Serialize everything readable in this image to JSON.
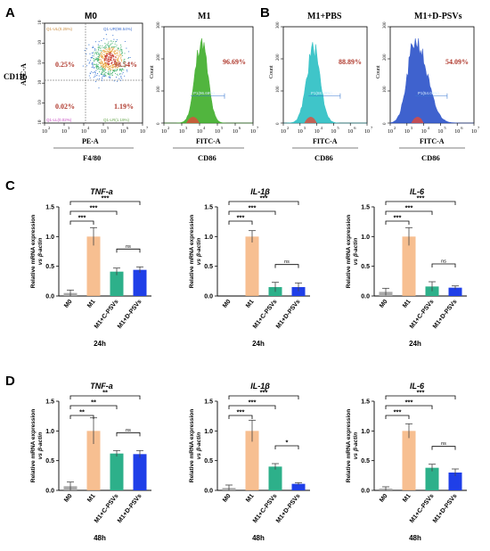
{
  "panel_letters": {
    "A": "A",
    "B": "B",
    "C": "C",
    "D": "D"
  },
  "flow": {
    "m0": {
      "title": "M0",
      "ylabel": "APC-A",
      "ylabel2": "CD11b",
      "xlabel": "PE-A",
      "xlabel2": "F4/80",
      "quad_values": {
        "ul": "0.25%",
        "ur": "98.54%",
        "ll": "0.02%",
        "lr": "1.19%"
      },
      "quad_tags": {
        "ul": "Q1-UL(0.25%)",
        "ur": "Q1-UR(98.54%)",
        "ll": "Q1-LL(0.02%)",
        "lr": "Q1-LR(1.19%)"
      }
    },
    "hists": [
      {
        "title": "M1",
        "value": "96.69%",
        "gate": "P1(96.69%)",
        "xlabel": "FITC-A",
        "xlabel2": "CD86",
        "color": "#3fae2a"
      },
      {
        "title": "M1+PBS",
        "value": "88.89%",
        "gate": "P1(88.89%)",
        "xlabel": "FITC-A",
        "xlabel2": "CD86",
        "color": "#2bbfc4"
      },
      {
        "title": "M1+D-PSVs",
        "value": "54.09%",
        "gate": "P1(54.09%)",
        "xlabel": "FITC-A",
        "xlabel2": "CD86",
        "color": "#2b52c9"
      }
    ],
    "count_label": "Count",
    "log_ticks": [
      "10",
      "10",
      "10",
      "10",
      "10",
      "10"
    ],
    "log_exps": [
      "2",
      "3",
      "4",
      "5",
      "6",
      "7"
    ],
    "hist_y_ticks": [
      "0",
      "100",
      "200",
      "300"
    ]
  },
  "chart_data": [
    {
      "type": "bar",
      "panel": "C",
      "title": "TNF-a",
      "xlabel": "24h",
      "ylabel": [
        "Relative mRNA expression",
        "vs β-actin"
      ],
      "categories": [
        "M0",
        "M1",
        "M1+C-PSVs",
        "M1+D-PSVs"
      ],
      "values": [
        0.05,
        1.0,
        0.41,
        0.44
      ],
      "errors": [
        0.05,
        0.15,
        0.06,
        0.05
      ],
      "ylim": [
        0,
        1.5
      ],
      "yticks": [
        "0.0",
        "0.5",
        "1.0",
        "1.5"
      ],
      "sig": [
        {
          "from": 0,
          "to": 1,
          "label": "***"
        },
        {
          "from": 0,
          "to": 2,
          "label": "***"
        },
        {
          "from": 0,
          "to": 3,
          "label": "***"
        },
        {
          "from": 2,
          "to": 3,
          "label": "ns"
        }
      ]
    },
    {
      "type": "bar",
      "panel": "C",
      "title": "IL-1β",
      "xlabel": "24h",
      "ylabel": [
        "Relative mRNA expression",
        "vs β-actin"
      ],
      "categories": [
        "M0",
        "M1",
        "M1+C-PSVs",
        "M1+D-PSVs"
      ],
      "values": [
        0.0,
        1.0,
        0.15,
        0.15
      ],
      "errors": [
        0.0,
        0.1,
        0.08,
        0.07
      ],
      "ylim": [
        0,
        1.5
      ],
      "yticks": [
        "0.0",
        "0.5",
        "1.0",
        "1.5"
      ],
      "sig": [
        {
          "from": 0,
          "to": 1,
          "label": "***"
        },
        {
          "from": 0,
          "to": 2,
          "label": "***"
        },
        {
          "from": 0,
          "to": 3,
          "label": "***"
        },
        {
          "from": 2,
          "to": 3,
          "label": "ns"
        }
      ]
    },
    {
      "type": "bar",
      "panel": "C",
      "title": "IL-6",
      "xlabel": "24h",
      "ylabel": [
        "Relative mRNA expression",
        "vs β-actin"
      ],
      "categories": [
        "M0",
        "M1",
        "M1+C-PSVs",
        "M1+D-PSVs"
      ],
      "values": [
        0.07,
        1.0,
        0.16,
        0.14
      ],
      "errors": [
        0.06,
        0.15,
        0.08,
        0.03
      ],
      "ylim": [
        0,
        1.5
      ],
      "yticks": [
        "0.0",
        "0.5",
        "1.0",
        "1.5"
      ],
      "sig": [
        {
          "from": 0,
          "to": 1,
          "label": "***"
        },
        {
          "from": 0,
          "to": 2,
          "label": "***"
        },
        {
          "from": 0,
          "to": 3,
          "label": "***"
        },
        {
          "from": 2,
          "to": 3,
          "label": "ns"
        }
      ]
    },
    {
      "type": "bar",
      "panel": "D",
      "title": "TNF-a",
      "xlabel": "48h",
      "ylabel": [
        "Relative mRNA expression",
        "vs β-actin"
      ],
      "categories": [
        "M0",
        "M1",
        "M1+C-PSVs",
        "M1+D-PSVs"
      ],
      "values": [
        0.07,
        1.0,
        0.62,
        0.61
      ],
      "errors": [
        0.07,
        0.22,
        0.05,
        0.06
      ],
      "ylim": [
        0,
        1.5
      ],
      "yticks": [
        "0.0",
        "0.5",
        "1.0",
        "1.5"
      ],
      "sig": [
        {
          "from": 0,
          "to": 1,
          "label": "**"
        },
        {
          "from": 0,
          "to": 2,
          "label": "**"
        },
        {
          "from": 0,
          "to": 3,
          "label": "**"
        },
        {
          "from": 2,
          "to": 3,
          "label": "ns"
        }
      ]
    },
    {
      "type": "bar",
      "panel": "D",
      "title": "IL-1β",
      "xlabel": "48h",
      "ylabel": [
        "Relative mRNA expression",
        "vs β-actin"
      ],
      "categories": [
        "M0",
        "M1",
        "M1+C-PSVs",
        "M1+D-PSVs"
      ],
      "values": [
        0.04,
        1.0,
        0.4,
        0.11
      ],
      "errors": [
        0.05,
        0.18,
        0.05,
        0.02
      ],
      "ylim": [
        0,
        1.5
      ],
      "yticks": [
        "0.0",
        "0.5",
        "1.0",
        "1.5"
      ],
      "sig": [
        {
          "from": 0,
          "to": 1,
          "label": "***"
        },
        {
          "from": 0,
          "to": 2,
          "label": "***"
        },
        {
          "from": 0,
          "to": 3,
          "label": "***"
        },
        {
          "from": 2,
          "to": 3,
          "label": "*"
        }
      ]
    },
    {
      "type": "bar",
      "panel": "D",
      "title": "IL-6",
      "xlabel": "48h",
      "ylabel": [
        "Relative mRNA expression",
        "vs β-actin"
      ],
      "categories": [
        "M0",
        "M1",
        "M1+C-PSVs",
        "M1+D-PSVs"
      ],
      "values": [
        0.03,
        1.0,
        0.38,
        0.3
      ],
      "errors": [
        0.03,
        0.12,
        0.06,
        0.06
      ],
      "ylim": [
        0,
        1.5
      ],
      "yticks": [
        "0.0",
        "0.5",
        "1.0",
        "1.5"
      ],
      "sig": [
        {
          "from": 0,
          "to": 1,
          "label": "***"
        },
        {
          "from": 0,
          "to": 2,
          "label": "***"
        },
        {
          "from": 0,
          "to": 3,
          "label": "***"
        },
        {
          "from": 2,
          "to": 3,
          "label": "ns"
        }
      ]
    }
  ],
  "bar_colors": [
    "#a9a9a9",
    "#f6b47e",
    "#2db08a",
    "#1f3fe8"
  ]
}
